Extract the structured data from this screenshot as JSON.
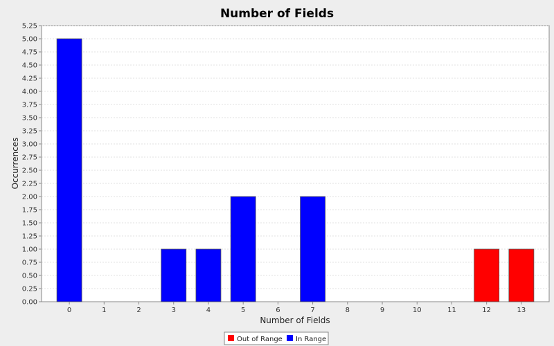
{
  "chart_data": {
    "type": "bar",
    "title": "Number of Fields",
    "xlabel": "Number of Fields",
    "ylabel": "Occurrences",
    "ylim": [
      0,
      5.25
    ],
    "ytick_step": 0.25,
    "grid": true,
    "legend_position": "bottom",
    "categories": [
      "0",
      "1",
      "2",
      "3",
      "4",
      "5",
      "6",
      "7",
      "8",
      "9",
      "10",
      "11",
      "12",
      "13"
    ],
    "series": [
      {
        "name": "Out of Range",
        "color": "#ff0000",
        "values": [
          0,
          0,
          0,
          0,
          0,
          0,
          0,
          0,
          0,
          0,
          0,
          0,
          1,
          1
        ]
      },
      {
        "name": "In Range",
        "color": "#0000ff",
        "values": [
          5,
          0,
          0,
          1,
          1,
          2,
          0,
          2,
          0,
          0,
          0,
          0,
          0,
          0
        ]
      }
    ]
  }
}
